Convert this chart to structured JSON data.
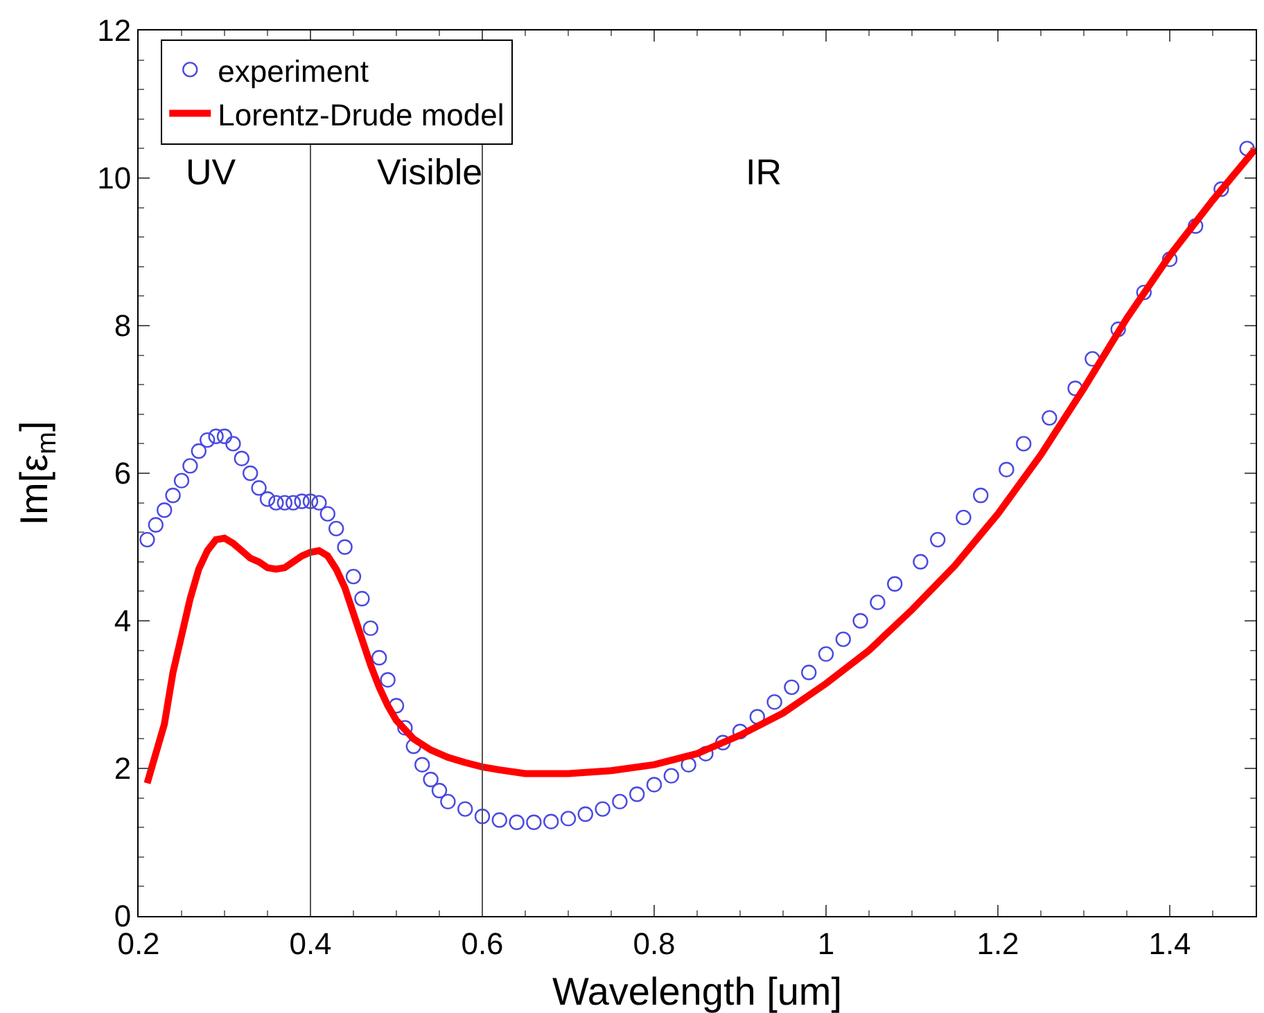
{
  "chart_data": {
    "type": "line",
    "xlabel": "Wavelength [um]",
    "ylabel": "Im[ε$_{m}$]",
    "xlim": [
      0.2,
      1.5
    ],
    "xticks": [
      0.2,
      0.4,
      0.6,
      0.8,
      1,
      1.2,
      1.4
    ],
    "ylim": [
      0,
      12
    ],
    "yticks": [
      0,
      2,
      4,
      6,
      8,
      10,
      12
    ],
    "grid": false,
    "legend": "top left",
    "annotations": [
      "UV",
      "Visible",
      "IR"
    ],
    "ref_lines": [
      {
        "axis": "x",
        "value": 0.4,
        "color": "#555555"
      },
      {
        "axis": "x",
        "value": 0.6,
        "color": "#555555"
      }
    ],
    "series": [
      {
        "name": "experiment",
        "type": "scatter",
        "marker": "circle",
        "color": "#4a4ae0",
        "x": [
          0.21,
          0.22,
          0.23,
          0.24,
          0.25,
          0.26,
          0.27,
          0.28,
          0.29,
          0.3,
          0.31,
          0.32,
          0.33,
          0.34,
          0.35,
          0.36,
          0.37,
          0.38,
          0.39,
          0.4,
          0.41,
          0.42,
          0.43,
          0.44,
          0.45,
          0.46,
          0.47,
          0.48,
          0.49,
          0.5,
          0.51,
          0.52,
          0.53,
          0.54,
          0.55,
          0.56,
          0.58,
          0.6,
          0.62,
          0.64,
          0.66,
          0.68,
          0.7,
          0.72,
          0.74,
          0.76,
          0.78,
          0.8,
          0.82,
          0.84,
          0.86,
          0.88,
          0.9,
          0.92,
          0.94,
          0.96,
          0.98,
          1,
          1.02,
          1.04,
          1.06,
          1.08,
          1.11,
          1.13,
          1.16,
          1.18,
          1.21,
          1.23,
          1.26,
          1.29,
          1.31,
          1.34,
          1.37,
          1.4,
          1.43,
          1.46,
          1.49
        ],
        "values": [
          5.1,
          5.3,
          5.5,
          5.7,
          5.9,
          6.1,
          6.3,
          6.45,
          6.5,
          6.5,
          6.4,
          6.2,
          6,
          5.8,
          5.65,
          5.6,
          5.6,
          5.6,
          5.62,
          5.62,
          5.6,
          5.45,
          5.25,
          5,
          4.6,
          4.3,
          3.9,
          3.5,
          3.2,
          2.85,
          2.55,
          2.3,
          2.05,
          1.85,
          1.7,
          1.55,
          1.45,
          1.35,
          1.3,
          1.27,
          1.27,
          1.28,
          1.32,
          1.38,
          1.45,
          1.55,
          1.65,
          1.78,
          1.9,
          2.05,
          2.2,
          2.35,
          2.5,
          2.7,
          2.9,
          3.1,
          3.3,
          3.55,
          3.75,
          4,
          4.25,
          4.5,
          4.8,
          5.1,
          5.4,
          5.7,
          6.05,
          6.4,
          6.75,
          7.15,
          7.55,
          7.95,
          8.45,
          8.9,
          9.35,
          9.85,
          10.4
        ]
      },
      {
        "name": "Lorentz-Drude model",
        "type": "line",
        "marker": "none",
        "line_style": "solid",
        "color": "#ff0000",
        "x": [
          0.21,
          0.22,
          0.23,
          0.24,
          0.25,
          0.26,
          0.27,
          0.28,
          0.29,
          0.3,
          0.31,
          0.32,
          0.33,
          0.34,
          0.35,
          0.36,
          0.37,
          0.38,
          0.39,
          0.4,
          0.41,
          0.42,
          0.43,
          0.44,
          0.45,
          0.46,
          0.47,
          0.48,
          0.49,
          0.5,
          0.52,
          0.54,
          0.56,
          0.58,
          0.6,
          0.62,
          0.65,
          0.7,
          0.75,
          0.8,
          0.85,
          0.9,
          0.95,
          1,
          1.05,
          1.1,
          1.15,
          1.2,
          1.25,
          1.3,
          1.35,
          1.4,
          1.45,
          1.5
        ],
        "values": [
          1.8,
          2.2,
          2.6,
          3.3,
          3.8,
          4.3,
          4.7,
          4.95,
          5.1,
          5.12,
          5.05,
          4.95,
          4.85,
          4.8,
          4.72,
          4.7,
          4.72,
          4.8,
          4.88,
          4.93,
          4.95,
          4.88,
          4.7,
          4.45,
          4.1,
          3.75,
          3.4,
          3.1,
          2.85,
          2.65,
          2.4,
          2.25,
          2.15,
          2.08,
          2.02,
          1.98,
          1.93,
          1.93,
          1.97,
          2.05,
          2.2,
          2.45,
          2.75,
          3.15,
          3.6,
          4.15,
          4.75,
          5.45,
          6.25,
          7.15,
          8.1,
          8.95,
          9.7,
          10.4
        ]
      }
    ]
  }
}
